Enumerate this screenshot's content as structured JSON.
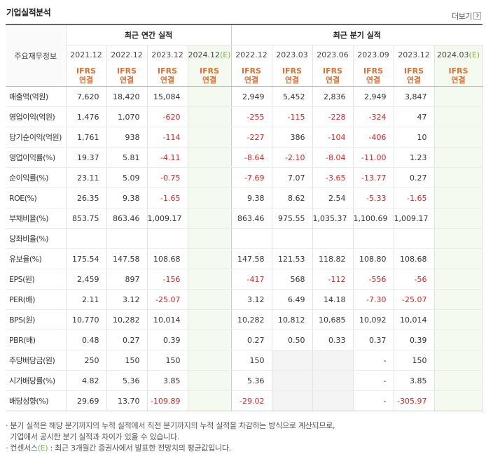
{
  "title": "기업실적분석",
  "more_label": "더보기",
  "corner_label": "주요재무정보",
  "groups": {
    "annual": "최근 연간 실적",
    "quarterly": "최근 분기 실적"
  },
  "periods": [
    {
      "label": "2021.12",
      "est": false
    },
    {
      "label": "2022.12",
      "est": false
    },
    {
      "label": "2023.12",
      "est": false
    },
    {
      "label": "2024.12",
      "est": true
    },
    {
      "label": "2022.12",
      "est": false
    },
    {
      "label": "2023.03",
      "est": false
    },
    {
      "label": "2023.06",
      "est": false
    },
    {
      "label": "2023.09",
      "est": false
    },
    {
      "label": "2023.12",
      "est": false
    },
    {
      "label": "2024.03",
      "est": true
    }
  ],
  "est_mark": "(E)",
  "standard_top": "IFRS",
  "standard_bottom": "연결",
  "rows": [
    {
      "label": "매출액(억원)",
      "values": [
        "7,620",
        "18,420",
        "15,084",
        "",
        "2,949",
        "5,452",
        "2,836",
        "2,949",
        "3,847",
        ""
      ]
    },
    {
      "label": "영업이익(억원)",
      "values": [
        "1,476",
        "1,070",
        "-620",
        "",
        "-255",
        "-115",
        "-228",
        "-324",
        "47",
        ""
      ]
    },
    {
      "label": "당기순이익(억원)",
      "values": [
        "1,761",
        "938",
        "-114",
        "",
        "-227",
        "386",
        "-104",
        "-406",
        "10",
        ""
      ]
    },
    {
      "label": "영업이익률(%)",
      "values": [
        "19.37",
        "5.81",
        "-4.11",
        "",
        "-8.64",
        "-2.10",
        "-8.04",
        "-11.00",
        "1.23",
        ""
      ]
    },
    {
      "label": "순이익률(%)",
      "values": [
        "23.11",
        "5.09",
        "-0.75",
        "",
        "-7.69",
        "7.07",
        "-3.65",
        "-13.77",
        "0.27",
        ""
      ]
    },
    {
      "label": "ROE(%)",
      "values": [
        "26.35",
        "9.38",
        "-1.65",
        "",
        "9.38",
        "8.62",
        "2.54",
        "-5.33",
        "-1.65",
        ""
      ]
    },
    {
      "label": "부채비율(%)",
      "values": [
        "853.75",
        "863.46",
        "1,009.17",
        "",
        "863.46",
        "975.55",
        "1,035.37",
        "1,100.69",
        "1,009.17",
        ""
      ]
    },
    {
      "label": "당좌비율(%)",
      "values": [
        "",
        "",
        "",
        "",
        "",
        "",
        "",
        "",
        "",
        ""
      ]
    },
    {
      "label": "유보율(%)",
      "values": [
        "175.54",
        "147.58",
        "108.68",
        "",
        "147.58",
        "121.53",
        "118.82",
        "108.80",
        "108.68",
        ""
      ]
    },
    {
      "label": "EPS(원)",
      "values": [
        "2,459",
        "897",
        "-156",
        "",
        "-417",
        "568",
        "-112",
        "-556",
        "-56",
        ""
      ]
    },
    {
      "label": "PER(배)",
      "values": [
        "2.11",
        "3.12",
        "-25.07",
        "",
        "3.12",
        "6.49",
        "14.18",
        "-7.30",
        "-25.07",
        ""
      ]
    },
    {
      "label": "BPS(원)",
      "values": [
        "10,770",
        "10,282",
        "10,014",
        "",
        "10,282",
        "10,812",
        "10,685",
        "10,092",
        "10,014",
        ""
      ]
    },
    {
      "label": "PBR(배)",
      "values": [
        "0.48",
        "0.27",
        "0.39",
        "",
        "0.27",
        "0.50",
        "0.33",
        "0.37",
        "0.39",
        ""
      ]
    },
    {
      "label": "주당배당금(원)",
      "values": [
        "250",
        "150",
        "150",
        "",
        "150",
        "",
        "",
        "-",
        "150",
        ""
      ]
    },
    {
      "label": "시가배당률(%)",
      "values": [
        "4.82",
        "5.36",
        "3.85",
        "",
        "5.36",
        "",
        "",
        "-",
        "3.85",
        ""
      ]
    },
    {
      "label": "배당성향(%)",
      "values": [
        "29.69",
        "13.70",
        "-109.89",
        "",
        "-29.02",
        "",
        "",
        "-",
        "-305.97",
        ""
      ]
    }
  ],
  "notes": {
    "line1": "· 분기 실적은 해당 분기까지의 누적 실적에서 직전 분기까지의 누적 실적을 차감하는 방식으로 계산되므로,",
    "line2": "  기업에서 공시한 분기 실적과 차이가 있을 수 있습니다.",
    "line3_pre": "· 컨센서스",
    "line3_mark": "(E)",
    "line3_post": " : 최근 3개월간 증권사에서 발표한 전망치의 평균값입니다."
  },
  "colors": {
    "negative": "#e02020",
    "standard": "#e07030",
    "estimate_mark": "#7ab648",
    "estimate_bg": "#f4faef"
  }
}
